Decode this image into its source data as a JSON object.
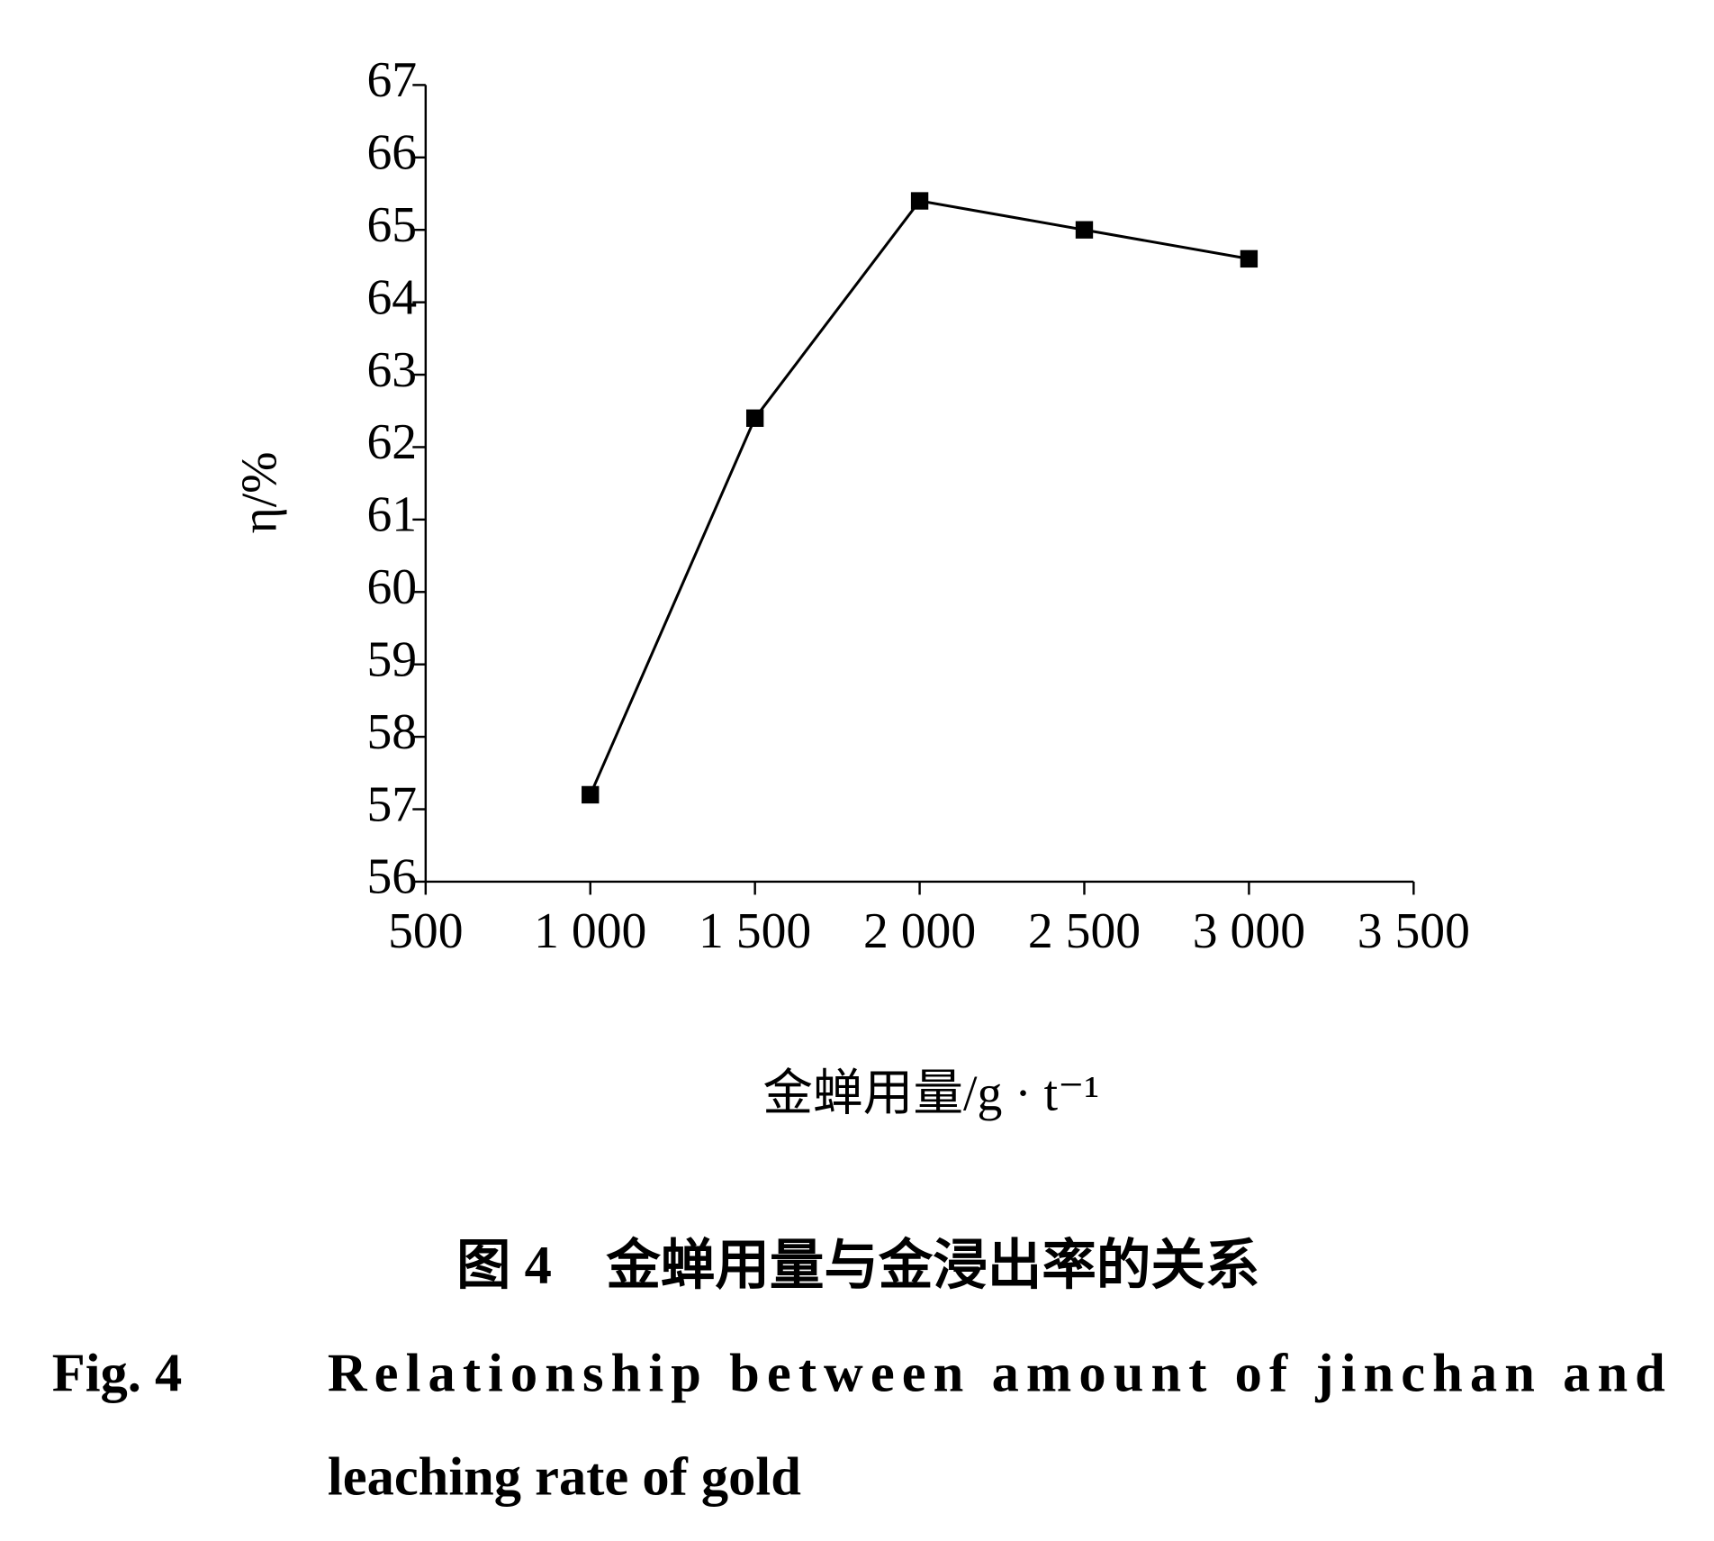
{
  "chart_data": {
    "type": "line",
    "x_label": "金蝉用量/g · t⁻¹",
    "y_label": "η/%",
    "x": [
      1000,
      1500,
      2000,
      2500,
      3000
    ],
    "series": [
      {
        "color": "#000000",
        "marker": "square",
        "values": [
          57.2,
          62.4,
          65.4,
          65.0,
          64.6
        ]
      }
    ],
    "xlim": [
      500,
      3500
    ],
    "xticks": [
      500,
      {
        "value": 1000,
        "label": "1 000"
      },
      {
        "value": 1500,
        "label": "1 500"
      },
      {
        "value": 2000,
        "label": "2 000"
      },
      {
        "value": 2500,
        "label": "2 500"
      },
      {
        "value": 3000,
        "label": "3 000"
      },
      {
        "value": 3500,
        "label": "3 500"
      }
    ],
    "ylim": [
      56,
      67
    ],
    "yticks": [
      56,
      57,
      58,
      59,
      60,
      61,
      62,
      63,
      64,
      65,
      66,
      67
    ],
    "grid": false
  },
  "caption": {
    "zh": "图 4　金蝉用量与金浸出率的关系",
    "fig_label": "Fig. 4",
    "en_lines": [
      "Relationship between amount of jinchan and",
      "leaching rate of gold"
    ]
  }
}
